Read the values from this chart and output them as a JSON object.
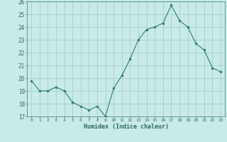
{
  "x": [
    0,
    1,
    2,
    3,
    4,
    5,
    6,
    7,
    8,
    9,
    10,
    11,
    12,
    13,
    14,
    15,
    16,
    17,
    18,
    19,
    20,
    21,
    22,
    23
  ],
  "y": [
    19.8,
    19.0,
    19.0,
    19.3,
    19.0,
    18.1,
    17.8,
    17.5,
    17.8,
    17.0,
    19.2,
    20.2,
    21.5,
    23.0,
    23.8,
    24.0,
    24.3,
    25.7,
    24.5,
    24.0,
    22.7,
    22.2,
    20.8,
    20.5
  ],
  "xlabel": "Humidex (Indice chaleur)",
  "ylim": [
    17,
    26
  ],
  "xlim": [
    -0.5,
    23.5
  ],
  "yticks": [
    17,
    18,
    19,
    20,
    21,
    22,
    23,
    24,
    25,
    26
  ],
  "xticks": [
    0,
    1,
    2,
    3,
    4,
    5,
    6,
    7,
    8,
    9,
    10,
    11,
    12,
    13,
    14,
    15,
    16,
    17,
    18,
    19,
    20,
    21,
    22,
    23
  ],
  "line_color": "#2e7d6e",
  "marker_color": "#2e7d6e",
  "bg_color": "#c8eae8",
  "grid_color": "#a0c8c4",
  "label_color": "#2e6b5e",
  "tick_color": "#2e6b5e",
  "axis_color": "#2e7d6e"
}
